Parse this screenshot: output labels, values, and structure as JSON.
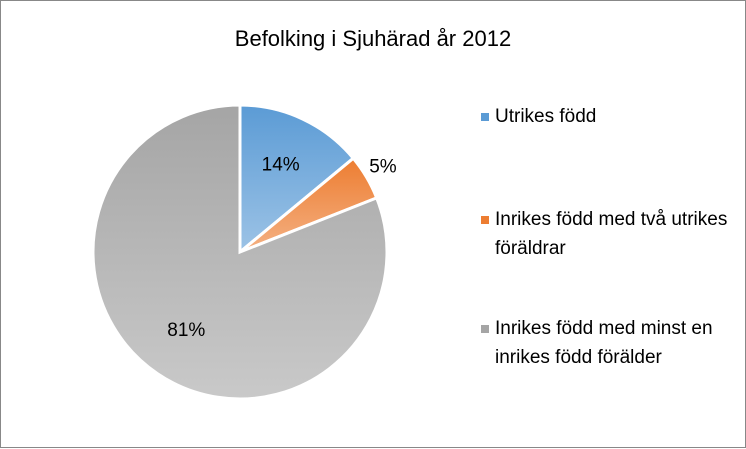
{
  "chart_data": {
    "type": "pie",
    "title": "Befolking i Sjuhärad år 2012",
    "categories": [
      "Utrikes född",
      "Inrikes född med två utrikes föräldrar",
      "Inrikes född med minst en inrikes född förälder"
    ],
    "values": [
      14,
      5,
      81
    ],
    "value_labels": [
      "14%",
      "5%",
      "81%"
    ],
    "colors": [
      "#5b9bd5",
      "#ed7d31",
      "#a5a5a5"
    ],
    "legend": "right"
  }
}
